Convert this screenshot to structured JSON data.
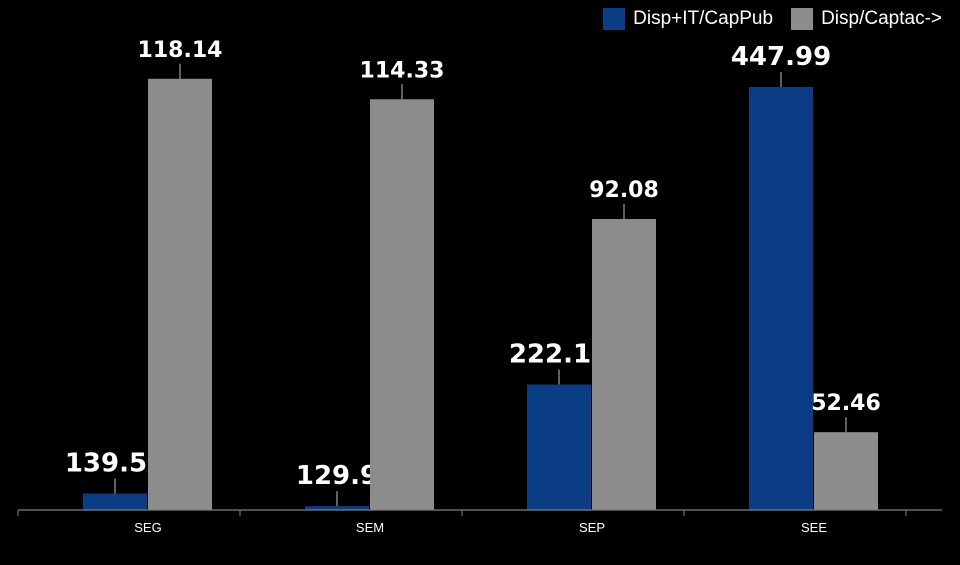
{
  "chart_data": {
    "type": "bar",
    "title": "",
    "xlabel": "",
    "ylabel": "",
    "categories": [
      "SEG",
      "SEM",
      "SEP",
      "SEE"
    ],
    "series": [
      {
        "name": "Disp+IT/CapPub",
        "color": "#0a3d84",
        "values": [
          139.51,
          129.9,
          222.19,
          447.99
        ],
        "labels": [
          "139.51",
          "129.9",
          "222.19",
          "447.99"
        ],
        "axis": "primary"
      },
      {
        "name": "Disp/Captac->",
        "color": "#8c8c8c",
        "values": [
          118.14,
          114.33,
          92.08,
          52.46
        ],
        "labels": [
          "118.14",
          "114.33",
          "92.08",
          "52.46"
        ],
        "axis": "secondary"
      }
    ],
    "primary_ylim": [
      127,
      470
    ],
    "secondary_ylim": [
      38,
      122
    ],
    "grid": false,
    "legend": "top-right",
    "axis_color": "#808080",
    "background": "#000000"
  }
}
